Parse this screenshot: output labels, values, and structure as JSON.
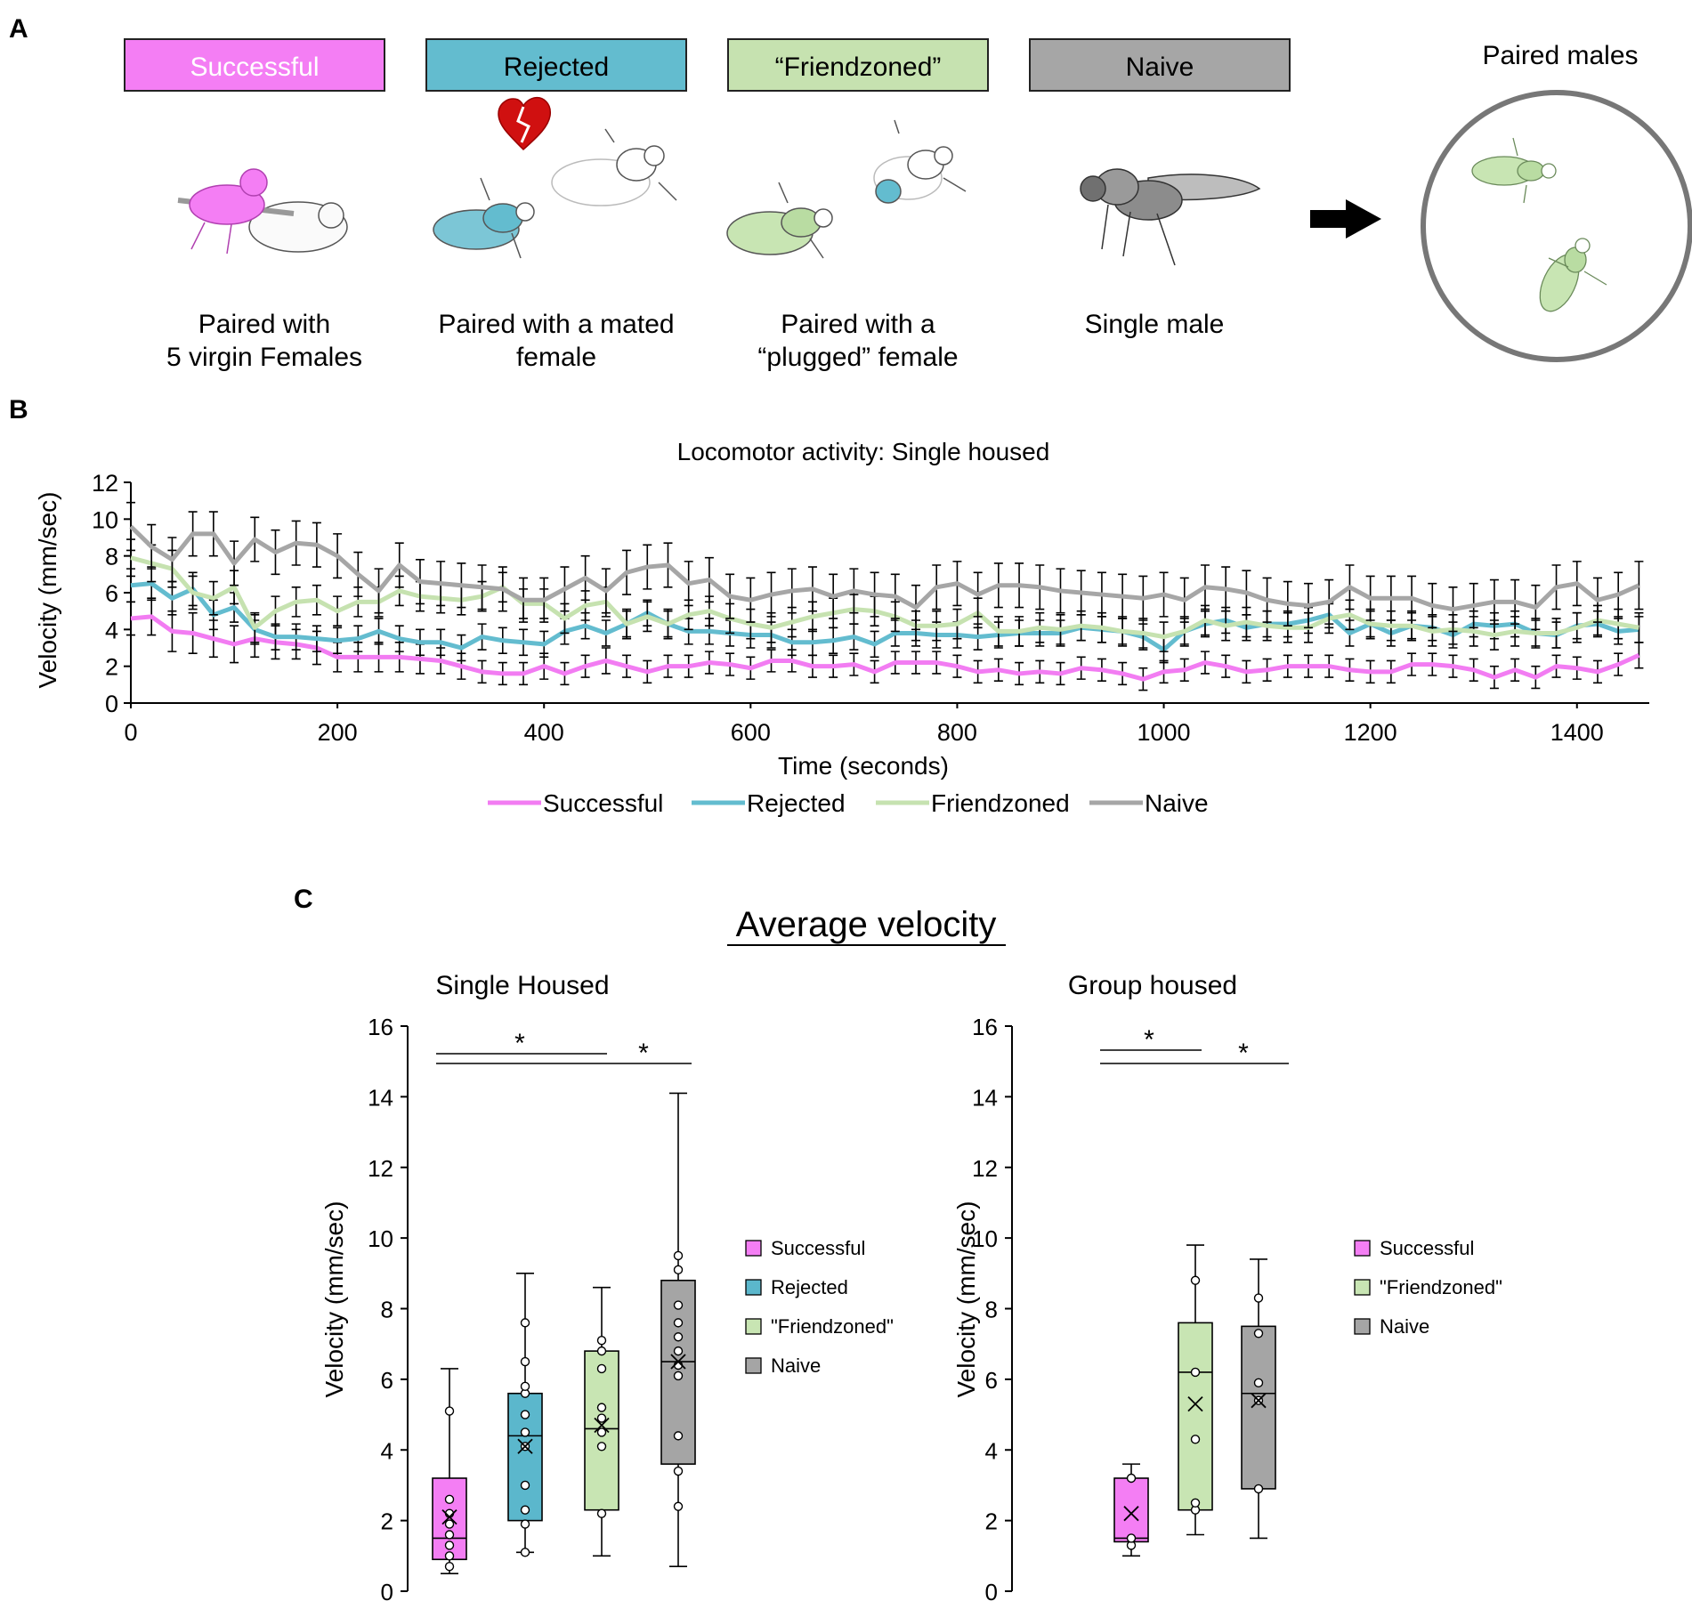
{
  "colors": {
    "successful": "#f27cf2",
    "rejected": "#63bccf",
    "friendzoned": "#c6e2b0",
    "naive": "#a6a6a6",
    "successful_box": "#f47ef4",
    "rejected_box": "#5bb7cc",
    "friendzoned_box": "#c8e5b3",
    "naive_box": "#a5a5a5"
  },
  "panel_a": {
    "letter": "A",
    "groups": [
      {
        "key": "successful",
        "label": "Successful",
        "caption": [
          "Paired with",
          "5 virgin Females"
        ]
      },
      {
        "key": "rejected",
        "label": "Rejected",
        "caption": [
          "Paired with a mated",
          "female"
        ]
      },
      {
        "key": "friendzoned",
        "label": "“Friendzoned”",
        "caption": [
          "Paired with a",
          "“plugged” female"
        ]
      },
      {
        "key": "naive",
        "label": "Naive",
        "caption": [
          "Single male"
        ]
      }
    ],
    "paired_title": "Paired males"
  },
  "panel_b": {
    "letter": "B"
  },
  "panel_c": {
    "letter": "C",
    "title": "Average velocity"
  },
  "chart_data": [
    {
      "type": "line",
      "title": "Locomotor activity: Single housed",
      "xlabel": "Time (seconds)",
      "ylabel": "Velocity (mm/sec)",
      "xlim": [
        0,
        1470
      ],
      "ylim": [
        0,
        12
      ],
      "xticks": [
        0,
        200,
        400,
        600,
        800,
        1000,
        1200,
        1400
      ],
      "yticks": [
        0,
        2,
        4,
        6,
        8,
        10,
        12
      ],
      "x_step": 20,
      "series": [
        {
          "key": "successful",
          "name": "Successful",
          "values": [
            4.6,
            4.7,
            3.9,
            3.8,
            3.5,
            3.2,
            3.5,
            3.3,
            3.2,
            3.0,
            2.5,
            2.5,
            2.5,
            2.5,
            2.4,
            2.3,
            2.0,
            1.7,
            1.6,
            1.6,
            2.0,
            1.6,
            2.0,
            2.3,
            2.0,
            1.7,
            2.0,
            2.0,
            2.2,
            2.1,
            1.9,
            2.3,
            2.3,
            2.0,
            2.0,
            2.1,
            1.7,
            2.2,
            2.2,
            2.2,
            2.0,
            1.7,
            1.8,
            1.6,
            1.7,
            1.6,
            1.9,
            1.8,
            1.6,
            1.3,
            1.7,
            1.8,
            2.2,
            2.0,
            1.7,
            1.8,
            2.0,
            2.0,
            2.0,
            1.8,
            1.7,
            1.7,
            2.1,
            2.1,
            2.0,
            1.8,
            1.4,
            1.8,
            1.4,
            2.0,
            1.9,
            1.7,
            2.1,
            2.6
          ],
          "errors": [
            0.9,
            1.0,
            1.1,
            1.1,
            1.0,
            1.0,
            1.0,
            0.9,
            0.8,
            0.9,
            0.8,
            0.8,
            0.8,
            0.8,
            0.8,
            0.7,
            0.7,
            0.6,
            0.6,
            0.6,
            0.7,
            0.6,
            0.6,
            0.7,
            0.6,
            0.6,
            0.6,
            0.6,
            0.6,
            0.6,
            0.6,
            0.6,
            0.6,
            0.6,
            0.6,
            0.6,
            0.6,
            0.6,
            0.6,
            0.6,
            0.6,
            0.6,
            0.6,
            0.6,
            0.6,
            0.6,
            0.6,
            0.6,
            0.6,
            0.6,
            0.6,
            0.6,
            0.6,
            0.6,
            0.6,
            0.6,
            0.6,
            0.6,
            0.6,
            0.6,
            0.6,
            0.6,
            0.6,
            0.6,
            0.6,
            0.6,
            0.6,
            0.6,
            0.6,
            0.6,
            0.6,
            0.6,
            0.6,
            0.7
          ]
        },
        {
          "key": "rejected",
          "name": "Rejected",
          "values": [
            6.4,
            6.5,
            5.7,
            6.2,
            4.8,
            5.2,
            4.0,
            3.6,
            3.6,
            3.5,
            3.4,
            3.5,
            3.9,
            3.5,
            3.3,
            3.3,
            3.0,
            3.6,
            3.4,
            3.3,
            3.2,
            3.9,
            4.2,
            3.8,
            4.3,
            4.9,
            4.3,
            3.9,
            3.9,
            3.8,
            3.7,
            3.7,
            3.3,
            3.3,
            3.4,
            3.6,
            3.2,
            3.8,
            3.8,
            3.7,
            3.7,
            3.6,
            3.7,
            3.8,
            3.8,
            3.8,
            4.1,
            4.0,
            3.9,
            3.6,
            2.9,
            3.9,
            4.3,
            4.5,
            4.1,
            4.3,
            4.3,
            4.5,
            4.8,
            3.8,
            4.3,
            3.8,
            4.2,
            4.1,
            3.7,
            4.3,
            4.2,
            4.3,
            3.8,
            3.7,
            4.2,
            4.3,
            3.9,
            4.0
          ],
          "errors": [
            0.9,
            0.9,
            0.9,
            0.9,
            0.8,
            0.8,
            0.8,
            0.7,
            0.7,
            0.7,
            0.7,
            0.7,
            0.7,
            0.7,
            0.7,
            0.7,
            0.7,
            0.7,
            0.7,
            0.7,
            0.7,
            0.7,
            0.7,
            0.7,
            0.7,
            0.7,
            0.7,
            0.7,
            0.7,
            0.7,
            0.7,
            0.7,
            0.7,
            0.7,
            0.7,
            0.7,
            0.7,
            0.7,
            0.7,
            0.7,
            0.7,
            0.7,
            0.7,
            0.7,
            0.7,
            0.7,
            0.7,
            0.7,
            0.7,
            0.7,
            0.7,
            0.7,
            0.7,
            0.7,
            0.7,
            0.7,
            0.7,
            0.7,
            0.7,
            0.7,
            0.7,
            0.7,
            0.7,
            0.7,
            0.7,
            0.7,
            0.7,
            0.7,
            0.7,
            0.7,
            0.7,
            0.7,
            0.7,
            0.7
          ]
        },
        {
          "key": "friendzoned",
          "name": "Friendzoned",
          "values": [
            7.9,
            7.6,
            7.3,
            6.0,
            5.7,
            6.3,
            4.1,
            5.0,
            5.5,
            5.6,
            5.0,
            5.5,
            5.5,
            6.1,
            5.8,
            5.7,
            5.6,
            5.8,
            6.3,
            5.4,
            5.4,
            4.6,
            5.3,
            5.5,
            4.3,
            4.7,
            4.3,
            4.8,
            5.0,
            4.6,
            4.3,
            4.1,
            4.4,
            4.7,
            4.9,
            5.1,
            5.0,
            4.7,
            4.2,
            4.2,
            4.3,
            4.9,
            3.9,
            3.9,
            4.1,
            4.0,
            4.2,
            4.1,
            3.9,
            3.8,
            3.6,
            3.9,
            4.5,
            4.2,
            4.4,
            4.2,
            4.1,
            4.1,
            4.6,
            4.8,
            4.3,
            4.2,
            4.2,
            3.9,
            4.0,
            3.9,
            3.7,
            3.9,
            3.8,
            3.8,
            4.1,
            4.5,
            4.3,
            4.1
          ],
          "errors": [
            1.0,
            1.0,
            1.0,
            0.9,
            0.9,
            0.9,
            0.8,
            0.8,
            0.8,
            0.8,
            0.8,
            0.8,
            0.8,
            0.8,
            0.8,
            0.8,
            0.8,
            0.8,
            0.8,
            0.8,
            0.8,
            0.8,
            0.8,
            0.8,
            0.8,
            0.8,
            0.8,
            0.8,
            0.8,
            0.8,
            0.8,
            0.8,
            0.8,
            0.8,
            0.8,
            0.8,
            0.8,
            0.8,
            0.8,
            0.8,
            0.8,
            0.8,
            0.8,
            0.8,
            0.8,
            0.8,
            0.8,
            0.8,
            0.8,
            0.8,
            0.8,
            0.8,
            0.8,
            0.8,
            0.8,
            0.8,
            0.8,
            0.8,
            0.8,
            0.8,
            0.8,
            0.8,
            0.8,
            0.8,
            0.8,
            0.8,
            0.8,
            0.8,
            0.8,
            0.8,
            0.8,
            0.8,
            0.8,
            0.8
          ]
        },
        {
          "key": "naive",
          "name": "Naive",
          "values": [
            9.6,
            8.5,
            7.8,
            9.2,
            9.2,
            7.6,
            8.9,
            8.2,
            8.7,
            8.6,
            8.0,
            7.0,
            6.1,
            7.5,
            6.6,
            6.5,
            6.4,
            6.3,
            6.2,
            5.6,
            5.6,
            6.2,
            6.8,
            6.1,
            7.1,
            7.4,
            7.5,
            6.5,
            6.7,
            5.8,
            5.6,
            5.9,
            6.1,
            6.2,
            5.8,
            6.1,
            5.9,
            5.8,
            5.2,
            6.3,
            6.5,
            5.9,
            6.4,
            6.4,
            6.3,
            6.1,
            6.0,
            5.9,
            5.8,
            5.7,
            5.9,
            5.6,
            6.3,
            6.2,
            6.0,
            5.6,
            5.4,
            5.3,
            5.5,
            6.3,
            5.7,
            5.7,
            5.7,
            5.3,
            5.1,
            5.3,
            5.5,
            5.5,
            5.2,
            6.3,
            6.5,
            5.6,
            5.9,
            6.4
          ],
          "errors": [
            1.3,
            1.2,
            1.2,
            1.2,
            1.2,
            1.2,
            1.2,
            1.2,
            1.2,
            1.2,
            1.2,
            1.2,
            1.2,
            1.2,
            1.2,
            1.2,
            1.2,
            1.2,
            1.2,
            1.2,
            1.2,
            1.2,
            1.2,
            1.2,
            1.2,
            1.2,
            1.2,
            1.2,
            1.2,
            1.2,
            1.2,
            1.2,
            1.2,
            1.2,
            1.2,
            1.2,
            1.2,
            1.2,
            1.2,
            1.2,
            1.2,
            1.2,
            1.2,
            1.2,
            1.2,
            1.2,
            1.2,
            1.2,
            1.2,
            1.2,
            1.2,
            1.2,
            1.2,
            1.2,
            1.2,
            1.2,
            1.2,
            1.2,
            1.2,
            1.2,
            1.2,
            1.2,
            1.2,
            1.2,
            1.2,
            1.2,
            1.2,
            1.2,
            1.2,
            1.2,
            1.2,
            1.2,
            1.2,
            1.3
          ]
        }
      ]
    },
    {
      "type": "box",
      "title": "Single Housed",
      "ylabel": "Velocity (mm/sec)",
      "ylim": [
        0,
        16
      ],
      "yticks": [
        0,
        2,
        4,
        6,
        8,
        10,
        12,
        14,
        16
      ],
      "significance": [
        "*",
        "*"
      ],
      "groups": [
        {
          "key": "successful",
          "name": "Successful",
          "min": 0.5,
          "q1": 0.9,
          "median": 1.5,
          "q3": 3.2,
          "max": 6.3,
          "mean": 2.1,
          "points": [
            0.7,
            1.0,
            1.3,
            1.6,
            1.9,
            2.2,
            2.6,
            5.1
          ]
        },
        {
          "key": "rejected",
          "name": "Rejected",
          "min": 1.1,
          "q1": 2.0,
          "median": 4.4,
          "q3": 5.6,
          "max": 9.0,
          "mean": 4.1,
          "points": [
            1.1,
            1.9,
            2.3,
            3.0,
            4.1,
            4.5,
            5.0,
            5.6,
            5.8,
            6.5,
            7.6
          ]
        },
        {
          "key": "friendzoned",
          "name": "\"Friendzoned\"",
          "min": 1.0,
          "q1": 2.3,
          "median": 4.6,
          "q3": 6.8,
          "max": 8.6,
          "mean": 4.7,
          "points": [
            2.2,
            4.1,
            4.5,
            4.9,
            5.2,
            6.3,
            6.8,
            7.1
          ]
        },
        {
          "key": "naive",
          "name": "Naive",
          "min": 0.7,
          "q1": 3.6,
          "median": 6.5,
          "q3": 8.8,
          "max": 14.1,
          "mean": 6.5,
          "points": [
            2.4,
            3.4,
            4.4,
            6.1,
            6.4,
            6.8,
            7.2,
            7.6,
            8.1,
            9.1,
            9.5
          ]
        }
      ]
    },
    {
      "type": "box",
      "title": "Group housed",
      "ylabel": "Velocity (mm/sec)",
      "ylim": [
        0,
        16
      ],
      "yticks": [
        0,
        2,
        4,
        6,
        8,
        10,
        12,
        14,
        16
      ],
      "significance": [
        "*",
        "*"
      ],
      "groups": [
        {
          "key": "successful",
          "name": "Successful",
          "min": 1.0,
          "q1": 1.4,
          "median": 1.5,
          "q3": 3.2,
          "max": 3.6,
          "mean": 2.2,
          "points": [
            1.3,
            1.5,
            3.2
          ]
        },
        {
          "key": "friendzoned",
          "name": "\"Friendzoned\"",
          "min": 1.6,
          "q1": 2.3,
          "median": 6.2,
          "q3": 7.6,
          "max": 9.8,
          "mean": 5.3,
          "points": [
            2.3,
            2.5,
            4.3,
            6.2,
            8.8
          ]
        },
        {
          "key": "naive",
          "name": "Naive",
          "min": 1.5,
          "q1": 2.9,
          "median": 5.6,
          "q3": 7.5,
          "max": 9.4,
          "mean": 5.4,
          "points": [
            2.9,
            5.4,
            5.9,
            7.3,
            8.3
          ]
        }
      ]
    }
  ]
}
